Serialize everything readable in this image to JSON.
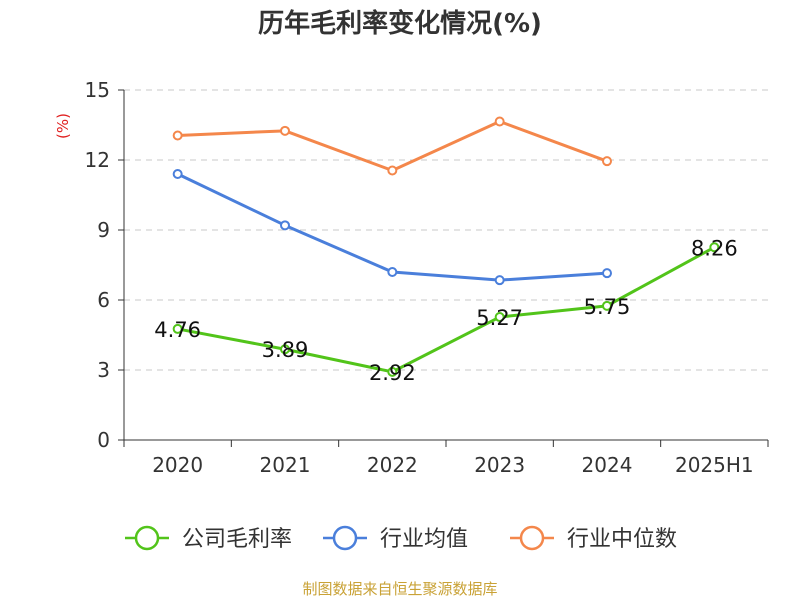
{
  "chart_data": {
    "type": "line",
    "title": "历年毛利率变化情况(%)",
    "ylabel": "(%)",
    "categories": [
      "2020",
      "2021",
      "2022",
      "2023",
      "2024",
      "2025H1"
    ],
    "ylim": [
      0,
      15
    ],
    "yticks": [
      0,
      3,
      6,
      9,
      12,
      15
    ],
    "grid": true,
    "legend_position": "bottom",
    "series": [
      {
        "name": "公司毛利率",
        "color": "#52c41a",
        "values": [
          4.76,
          3.89,
          2.92,
          5.27,
          5.75,
          8.26
        ],
        "labels": [
          "4.76",
          "3.89",
          "2.92",
          "5.27",
          "5.75",
          "8.26"
        ]
      },
      {
        "name": "行业均值",
        "color": "#4a7fdb",
        "values": [
          11.4,
          9.2,
          7.2,
          6.85,
          7.15,
          null
        ]
      },
      {
        "name": "行业中位数",
        "color": "#f4874b",
        "values": [
          13.05,
          13.25,
          11.55,
          13.65,
          11.95,
          null
        ]
      }
    ],
    "source": "制图数据来自恒生聚源数据库"
  }
}
